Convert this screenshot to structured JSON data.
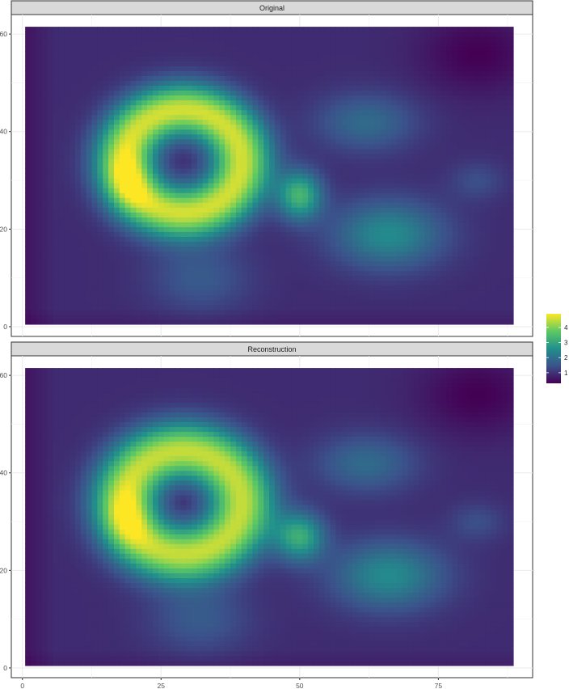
{
  "chart_data": {
    "type": "heatmap",
    "title": "",
    "xlabel": "",
    "ylabel": "",
    "xlim": [
      -2,
      92
    ],
    "ylim": [
      -2,
      64
    ],
    "x_ticks": [
      0,
      25,
      50,
      75
    ],
    "y_ticks": [
      0,
      20,
      40,
      60
    ],
    "x_extent": [
      1,
      88
    ],
    "y_extent": [
      1,
      61
    ],
    "grid": true,
    "colormap": "viridis",
    "colorbar": {
      "ticks": [
        1,
        2,
        3,
        4
      ],
      "range": [
        0.3,
        4.9
      ],
      "colors": [
        "#440154",
        "#3b528b",
        "#21908c",
        "#5dc963",
        "#fde725"
      ]
    },
    "panels": [
      {
        "strip_label": "Original",
        "field": {
          "background": 0.9,
          "features": [
            {
              "name": "ring",
              "cx": 29,
              "cy": 34,
              "r": 10.5,
              "width": 5.5,
              "peak": 3.7
            },
            {
              "name": "left-arc-bright",
              "cx": 19,
              "cy": 30,
              "sx": 4,
              "sy": 6,
              "peak": 0.9
            },
            {
              "name": "right-blob",
              "cx": 50,
              "cy": 27,
              "sx": 4,
              "sy": 5,
              "peak": 2.4
            },
            {
              "name": "lower-right-plume",
              "cx": 66,
              "cy": 19,
              "sx": 10,
              "sy": 7,
              "peak": 1.6
            },
            {
              "name": "upper-right-plume",
              "cx": 62,
              "cy": 42,
              "sx": 9,
              "sy": 6,
              "peak": 1.0
            },
            {
              "name": "far-right-tail",
              "cx": 82,
              "cy": 30,
              "sx": 5,
              "sy": 4,
              "peak": 0.5
            },
            {
              "name": "bottom-tail",
              "cx": 32,
              "cy": 10,
              "sx": 9,
              "sy": 7,
              "peak": 0.7
            },
            {
              "name": "top-right-dark",
              "cx": 82,
              "cy": 56,
              "sx": 10,
              "sy": 8,
              "peak": -0.6
            }
          ]
        }
      },
      {
        "strip_label": "Reconstruction",
        "field": {
          "background": 0.9,
          "features": [
            {
              "name": "ring",
              "cx": 29,
              "cy": 34,
              "r": 10.5,
              "width": 6.0,
              "peak": 3.6
            },
            {
              "name": "left-arc-bright",
              "cx": 19,
              "cy": 31,
              "sx": 4,
              "sy": 6,
              "peak": 0.85
            },
            {
              "name": "right-blob",
              "cx": 50,
              "cy": 27,
              "sx": 4.5,
              "sy": 5,
              "peak": 2.2
            },
            {
              "name": "lower-right-plume",
              "cx": 66,
              "cy": 19,
              "sx": 10,
              "sy": 7,
              "peak": 1.6
            },
            {
              "name": "upper-right-plume",
              "cx": 62,
              "cy": 42,
              "sx": 9,
              "sy": 6,
              "peak": 1.0
            },
            {
              "name": "far-right-tail",
              "cx": 82,
              "cy": 30,
              "sx": 5,
              "sy": 4,
              "peak": 0.5
            },
            {
              "name": "bottom-tail",
              "cx": 32,
              "cy": 10,
              "sx": 9,
              "sy": 7,
              "peak": 0.7
            },
            {
              "name": "top-right-dark",
              "cx": 82,
              "cy": 56,
              "sx": 10,
              "sy": 8,
              "peak": -0.6
            }
          ]
        }
      }
    ]
  }
}
